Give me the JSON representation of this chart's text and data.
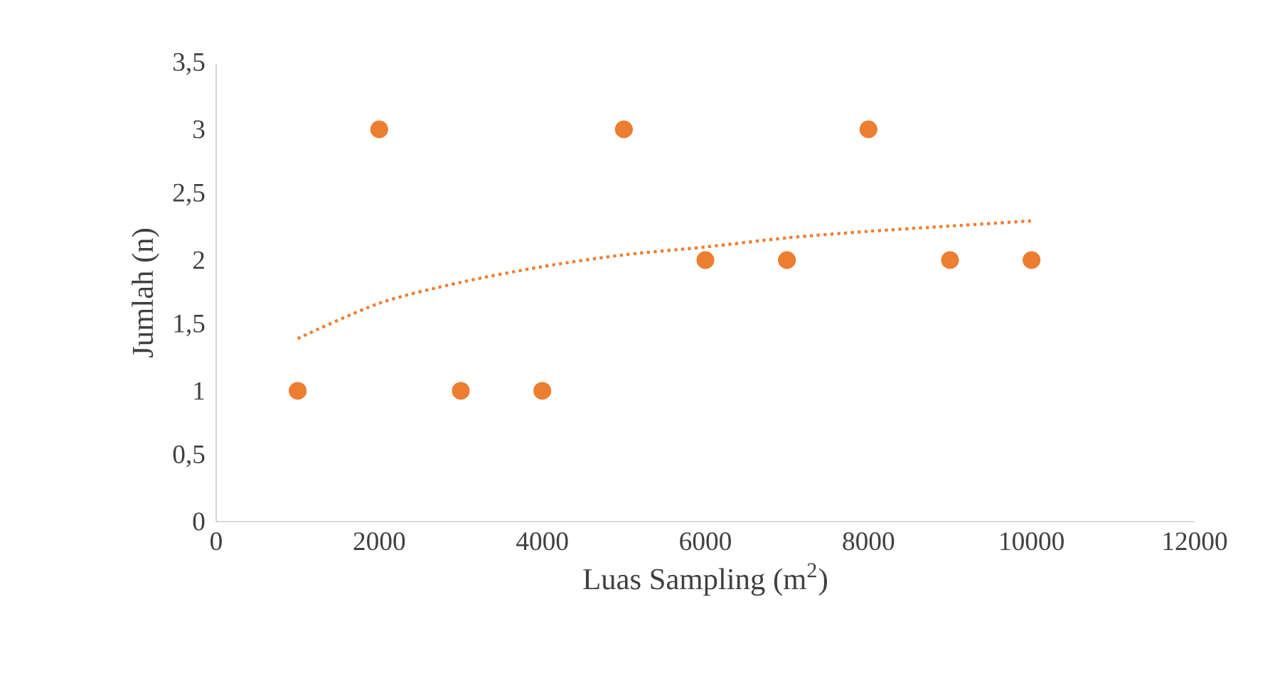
{
  "chart_data": {
    "type": "scatter",
    "xlabel": "Luas Sampling (m$^{2}$)",
    "ylabel": "Jumlah (n)",
    "series": [
      {
        "color": "#ed7d31",
        "marker": "circle",
        "x": [
          1000,
          2000,
          3000,
          4000,
          5000,
          6000,
          7000,
          8000,
          9000,
          10000
        ],
        "values": [
          1,
          3,
          1,
          1,
          3,
          2,
          2,
          3,
          2,
          2
        ]
      },
      {
        "type": "line",
        "color": "#ed7d31",
        "line_style": "dotted",
        "marker": "none",
        "x": [
          1000,
          2000,
          3000,
          4000,
          5000,
          6000,
          7000,
          8000,
          9000,
          10000
        ],
        "values": [
          1.4,
          1.67,
          1.83,
          1.95,
          2.04,
          2.1,
          2.17,
          2.22,
          2.26,
          2.3
        ]
      }
    ],
    "xlim": [
      0,
      12000
    ],
    "xticks": [
      0,
      2000,
      4000,
      6000,
      8000,
      10000,
      12000
    ],
    "ylim": [
      0,
      3.5
    ],
    "yticks": [
      0,
      {
        "value": 0.5,
        "label": "0,5"
      },
      1,
      {
        "value": 1.5,
        "label": "1,5"
      },
      2,
      {
        "value": 2.5,
        "label": "2,5"
      },
      3,
      {
        "value": 3.5,
        "label": "3,5"
      }
    ],
    "grid": false
  }
}
